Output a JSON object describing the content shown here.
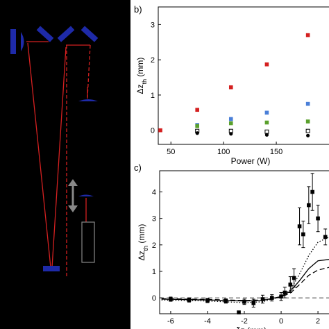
{
  "panel_b": {
    "tag": "b)"
  },
  "panel_c": {
    "tag": "c)"
  },
  "chart_data": [
    {
      "type": "scatter",
      "panel": "b",
      "xlabel": "Power (W)",
      "ylabel": "Δz_th (mm)",
      "xlim": [
        38,
        200
      ],
      "ylim": [
        -0.4,
        3.5
      ],
      "xticks": [
        50,
        100,
        150
      ],
      "yticks": [
        0,
        1,
        2,
        3
      ],
      "grid": false,
      "series": [
        {
          "color": "#d42020",
          "marker": "square",
          "points": [
            [
              40,
              0.0
            ],
            [
              75,
              0.58
            ],
            [
              107,
              1.22
            ],
            [
              141,
              1.87
            ],
            [
              180,
              2.7
            ]
          ]
        },
        {
          "color": "#4a7fd8",
          "marker": "square",
          "points": [
            [
              75,
              0.15
            ],
            [
              107,
              0.32
            ],
            [
              141,
              0.5
            ],
            [
              180,
              0.75
            ]
          ]
        },
        {
          "color": "#5aa02c",
          "marker": "square",
          "points": [
            [
              75,
              0.12
            ],
            [
              107,
              0.2
            ],
            [
              141,
              0.22
            ],
            [
              180,
              0.25
            ]
          ]
        },
        {
          "color": "#000000",
          "marker": "open-square",
          "points": [
            [
              75,
              -0.02
            ],
            [
              107,
              -0.02
            ],
            [
              141,
              -0.04
            ],
            [
              180,
              -0.02
            ]
          ]
        },
        {
          "color": "#000000",
          "marker": "circle",
          "points": [
            [
              75,
              -0.08
            ],
            [
              107,
              -0.1
            ],
            [
              141,
              -0.13
            ],
            [
              180,
              -0.15
            ]
          ]
        }
      ]
    },
    {
      "type": "line",
      "panel": "c",
      "xlabel": "δz (mm)",
      "ylabel": "Δz_th (mm)",
      "xlim": [
        -6.6,
        2.6
      ],
      "ylim": [
        -0.6,
        4.8
      ],
      "xticks": [
        -6,
        -4,
        -2,
        0,
        2
      ],
      "yticks": [
        0,
        1,
        2,
        3,
        4
      ],
      "grid": false,
      "reference_line_y": 0,
      "measured": [
        {
          "x": -6.0,
          "y": -0.05,
          "err": 0.08
        },
        {
          "x": -5.0,
          "y": -0.08,
          "err": 0.08
        },
        {
          "x": -4.0,
          "y": -0.1,
          "err": 0.08
        },
        {
          "x": -3.0,
          "y": -0.12,
          "err": 0.08
        },
        {
          "x": -2.3,
          "y": -0.55,
          "err": 0
        },
        {
          "x": -2.0,
          "y": -0.15,
          "err": 0.1
        },
        {
          "x": -1.5,
          "y": -0.2,
          "err": 0.15
        },
        {
          "x": -1.0,
          "y": -0.05,
          "err": 0.15
        },
        {
          "x": -0.5,
          "y": 0.0,
          "err": 0.12
        },
        {
          "x": 0.0,
          "y": 0.05,
          "err": 0.15
        },
        {
          "x": 0.2,
          "y": 0.2,
          "err": 0.2
        },
        {
          "x": 0.5,
          "y": 0.5,
          "err": 0.3
        },
        {
          "x": 0.7,
          "y": 0.75,
          "err": 0.35
        },
        {
          "x": 1.0,
          "y": 2.7,
          "err": 0.7
        },
        {
          "x": 1.2,
          "y": 2.4,
          "err": 0.5
        },
        {
          "x": 1.5,
          "y": 3.5,
          "err": 0.7
        },
        {
          "x": 1.7,
          "y": 4.0,
          "err": 0.7
        },
        {
          "x": 2.0,
          "y": 3.0,
          "err": 0.5
        },
        {
          "x": 2.4,
          "y": 2.3,
          "err": 0.3
        }
      ],
      "curves": [
        {
          "style": "dotted",
          "points": [
            [
              -6.5,
              -0.08
            ],
            [
              -4,
              -0.12
            ],
            [
              -2,
              -0.18
            ],
            [
              -1,
              -0.15
            ],
            [
              0,
              0.05
            ],
            [
              0.5,
              0.3
            ],
            [
              1,
              0.9
            ],
            [
              1.5,
              1.6
            ],
            [
              2,
              2.1
            ],
            [
              2.6,
              2.3
            ]
          ]
        },
        {
          "style": "solid",
          "points": [
            [
              -6.5,
              -0.05
            ],
            [
              -4,
              -0.08
            ],
            [
              -2,
              -0.12
            ],
            [
              -1,
              -0.1
            ],
            [
              0,
              0.05
            ],
            [
              0.5,
              0.25
            ],
            [
              1,
              0.65
            ],
            [
              1.5,
              1.1
            ],
            [
              2,
              1.4
            ],
            [
              2.6,
              1.45
            ]
          ]
        },
        {
          "style": "dashed",
          "points": [
            [
              -6.5,
              -0.03
            ],
            [
              -4,
              -0.06
            ],
            [
              -2,
              -0.1
            ],
            [
              -1,
              -0.08
            ],
            [
              0,
              0.03
            ],
            [
              0.5,
              0.18
            ],
            [
              1,
              0.5
            ],
            [
              1.5,
              0.85
            ],
            [
              2,
              1.05
            ],
            [
              2.6,
              1.15
            ]
          ]
        }
      ]
    }
  ]
}
